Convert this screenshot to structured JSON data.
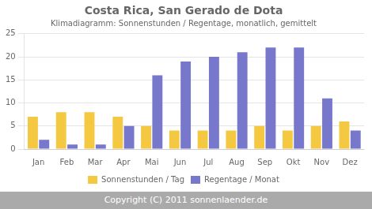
{
  "chart_data": {
    "type": "bar",
    "title": "Costa Rica, San Gerado de Dota",
    "subtitle": "Klimadiagramm: Sonnenstunden / Regentage, monatlich, gemittelt",
    "categories": [
      "Jan",
      "Feb",
      "Mar",
      "Apr",
      "Mai",
      "Jun",
      "Jul",
      "Aug",
      "Sep",
      "Okt",
      "Nov",
      "Dez"
    ],
    "series": [
      {
        "name": "Sonnenstunden / Tag",
        "color": "#F5C842",
        "values": [
          7,
          8,
          8,
          7,
          5,
          4,
          4,
          4,
          5,
          4,
          5,
          6
        ]
      },
      {
        "name": "Regentage / Monat",
        "color": "#7777CC",
        "values": [
          2,
          1,
          1,
          5,
          16,
          19,
          20,
          21,
          22,
          22,
          11,
          4
        ]
      }
    ],
    "ylim": [
      0,
      25
    ],
    "yticks": [
      0,
      5,
      10,
      15,
      20,
      25
    ],
    "grid": true,
    "legend": "bottom",
    "annotations": [
      "Copyright (C) 2011 sonnenlaender.de"
    ]
  }
}
